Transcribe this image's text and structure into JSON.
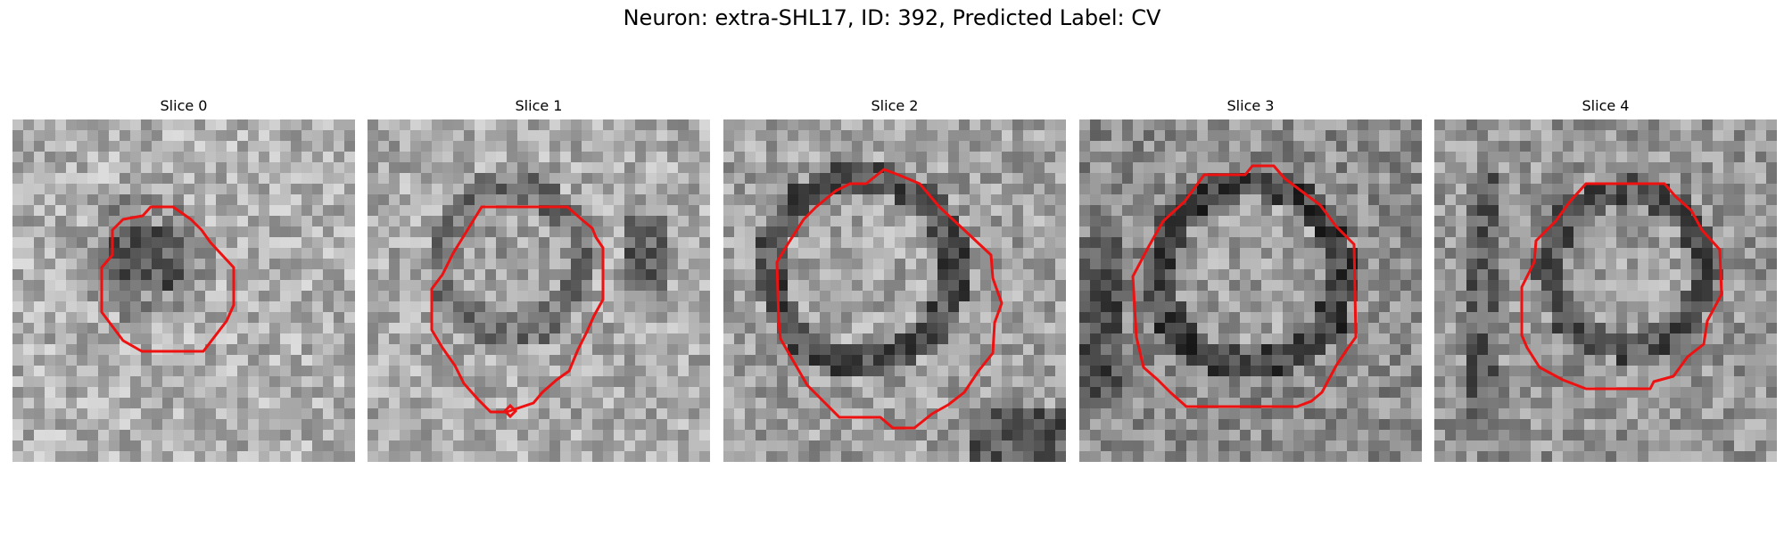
{
  "figure": {
    "title": "Neuron: extra-SHL17, ID: 392, Predicted Label: CV"
  },
  "slices": [
    {
      "title": "Slice 0"
    },
    {
      "title": "Slice 1"
    },
    {
      "title": "Slice 2"
    },
    {
      "title": "Slice 3"
    },
    {
      "title": "Slice 4"
    }
  ],
  "colors": {
    "contour": "#ee1111",
    "background": "#ffffff"
  }
}
